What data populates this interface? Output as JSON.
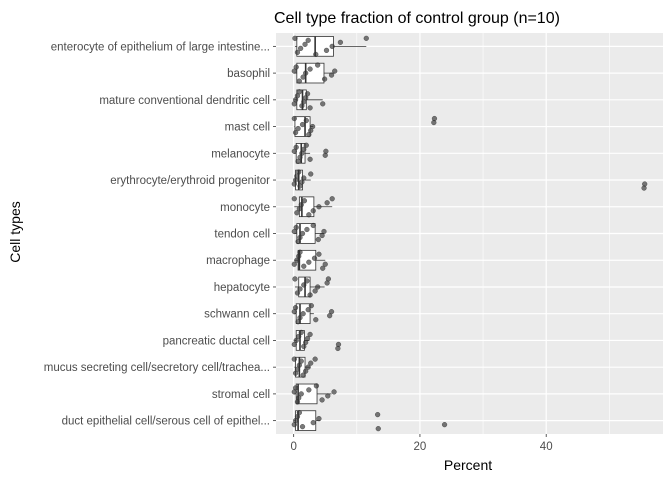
{
  "chart_data": {
    "type": "boxplot",
    "title": "Cell type fraction of control group (n=10)",
    "xlabel": "Percent",
    "ylabel": "Cell types",
    "xlim": [
      -2.8,
      58.5
    ],
    "x_ticks": [
      0,
      20,
      40
    ],
    "x_minor_ticks": [
      10,
      30,
      50
    ],
    "grid": true,
    "colors": {
      "panel": "#ebebeb",
      "grid": "#ffffff",
      "box_fill": "#ffffff",
      "box_line": "#333333",
      "point": "#333333"
    },
    "categories": [
      {
        "name": "enterocyte of epithelium of large intestine...",
        "box": {
          "min": 0.2,
          "q1": 0.5,
          "median": 3.4,
          "q3": 6.3,
          "max": 11.5
        },
        "points": [
          0.2,
          0.6,
          1.1,
          1.8,
          2.3,
          3.5,
          5.2,
          6.1,
          7.4,
          11.5
        ]
      },
      {
        "name": "basophil",
        "box": {
          "min": 0.1,
          "q1": 0.5,
          "median": 1.9,
          "q3": 4.8,
          "max": 6.5
        },
        "points": [
          0.1,
          0.4,
          0.9,
          1.5,
          1.9,
          2.6,
          3.8,
          4.9,
          6.0,
          6.5
        ]
      },
      {
        "name": "mature conventional dendritic cell",
        "box": {
          "min": 0.1,
          "q1": 0.5,
          "median": 1.4,
          "q3": 2.0,
          "max": 4.6
        },
        "points": [
          0.1,
          0.3,
          0.6,
          0.9,
          1.3,
          1.6,
          1.9,
          2.2,
          2.6,
          4.6
        ]
      },
      {
        "name": "mast cell",
        "box": {
          "min": 0.1,
          "q1": 0.2,
          "median": 1.8,
          "q3": 2.6,
          "max": 3.1
        },
        "points": [
          0.1,
          0.3,
          0.7,
          1.4,
          2.0,
          2.4,
          2.7,
          3.0,
          22.2,
          22.3
        ]
      },
      {
        "name": "melanocyte",
        "box": {
          "min": 0.1,
          "q1": 0.4,
          "median": 1.2,
          "q3": 1.8,
          "max": 2.6
        },
        "points": [
          0.1,
          0.4,
          0.7,
          1.0,
          1.3,
          1.6,
          2.0,
          2.6,
          5.0,
          5.1
        ]
      },
      {
        "name": "erythrocyte/erythroid progenitor",
        "box": {
          "min": 0.1,
          "q1": 0.3,
          "median": 0.8,
          "q3": 1.4,
          "max": 2.7
        },
        "points": [
          0.1,
          0.3,
          0.5,
          0.8,
          1.0,
          1.3,
          1.6,
          2.7,
          55.5,
          55.6
        ]
      },
      {
        "name": "monocyte",
        "box": {
          "min": 0.1,
          "q1": 0.9,
          "median": 1.3,
          "q3": 3.2,
          "max": 6.1
        },
        "points": [
          0.1,
          0.5,
          0.9,
          1.2,
          1.7,
          2.4,
          3.1,
          4.0,
          5.3,
          6.1
        ]
      },
      {
        "name": "tendon cell",
        "box": {
          "min": 0.1,
          "q1": 0.5,
          "median": 1.0,
          "q3": 3.4,
          "max": 4.8
        },
        "points": [
          0.1,
          0.4,
          0.7,
          1.0,
          1.4,
          2.1,
          3.1,
          3.9,
          4.5,
          4.8
        ]
      },
      {
        "name": "macrophage",
        "box": {
          "min": 0.1,
          "q1": 0.7,
          "median": 0.9,
          "q3": 3.5,
          "max": 5.0
        },
        "points": [
          0.1,
          0.5,
          0.8,
          1.0,
          1.6,
          2.4,
          3.3,
          4.0,
          4.6,
          5.0
        ]
      },
      {
        "name": "hepatocyte",
        "box": {
          "min": 0.2,
          "q1": 0.8,
          "median": 1.8,
          "q3": 2.6,
          "max": 4.9
        },
        "points": [
          0.2,
          0.6,
          1.0,
          1.6,
          2.1,
          2.6,
          3.4,
          3.8,
          5.3,
          5.5
        ]
      },
      {
        "name": "schwann cell",
        "box": {
          "min": 0.1,
          "q1": 0.4,
          "median": 1.0,
          "q3": 2.6,
          "max": 3.2
        },
        "points": [
          0.1,
          0.3,
          0.7,
          1.0,
          1.5,
          2.3,
          2.8,
          3.5,
          5.7,
          6.0
        ]
      },
      {
        "name": "pancreatic ductal cell",
        "box": {
          "min": 0.1,
          "q1": 0.4,
          "median": 1.0,
          "q3": 1.7,
          "max": 2.5
        },
        "points": [
          0.1,
          0.4,
          0.8,
          1.2,
          1.6,
          1.9,
          2.2,
          2.6,
          7.0,
          7.1
        ]
      },
      {
        "name": "mucus secreting cell/secretory cell/trachea...",
        "box": {
          "min": 0.1,
          "q1": 0.3,
          "median": 0.9,
          "q3": 1.8,
          "max": 2.6
        },
        "points": [
          0.1,
          0.3,
          0.6,
          0.9,
          1.2,
          1.5,
          1.9,
          2.3,
          2.7,
          3.4
        ]
      },
      {
        "name": "stromal cell",
        "box": {
          "min": 0.1,
          "q1": 0.4,
          "median": 0.7,
          "q3": 3.7,
          "max": 6.0
        },
        "points": [
          0.1,
          0.3,
          0.6,
          0.8,
          1.2,
          2.4,
          3.6,
          4.5,
          5.4,
          6.4
        ]
      },
      {
        "name": "duct epithelial cell/serous cell of epithel...",
        "box": {
          "min": 0.1,
          "q1": 0.3,
          "median": 0.7,
          "q3": 3.5,
          "max": 4.2
        },
        "points": [
          0.1,
          0.3,
          0.6,
          0.9,
          1.4,
          3.1,
          4.0,
          13.3,
          13.4,
          23.9
        ]
      }
    ]
  }
}
